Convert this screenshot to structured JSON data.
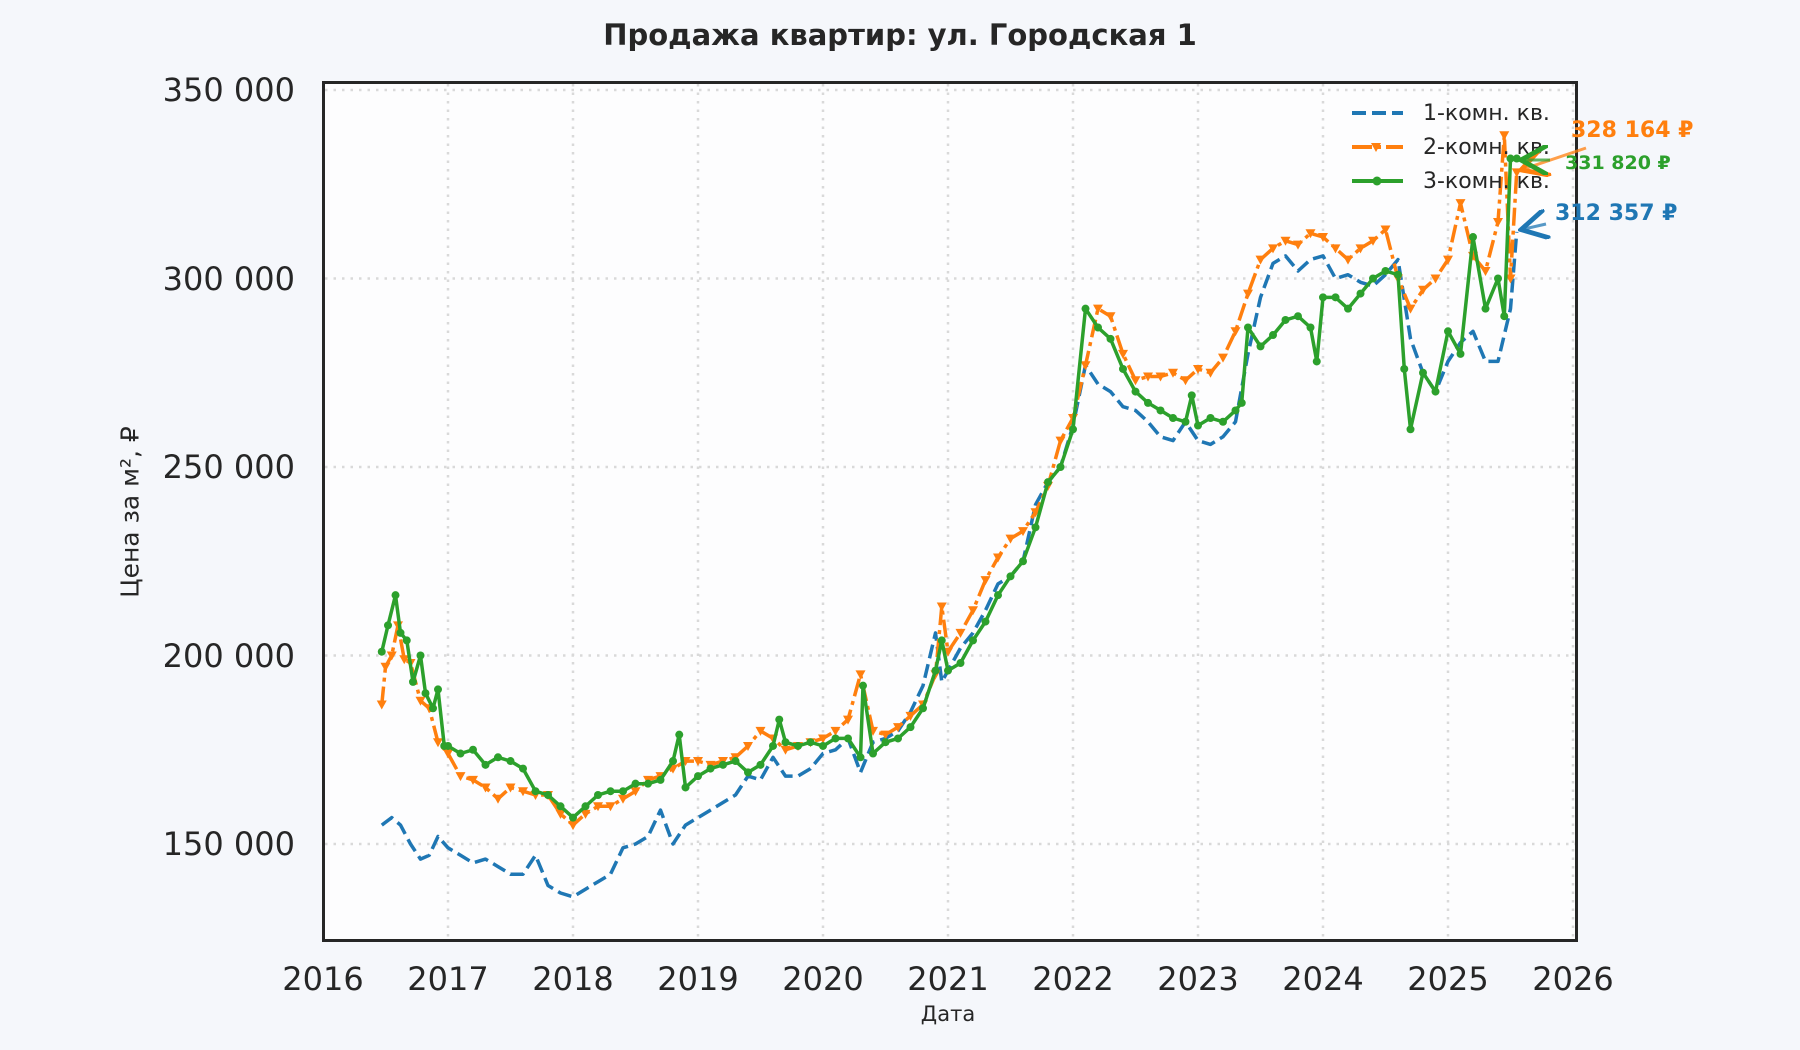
{
  "chart_data": {
    "type": "line",
    "title": "Продажа квартир: ул. Городская 1",
    "xlabel": "Дата",
    "ylabel": "Цена за м², ₽",
    "xlim": [
      2016,
      2026
    ],
    "ylim": [
      125000,
      352000
    ],
    "grid": true,
    "legend_position": "upper right",
    "x_ticks": [
      "2016",
      "2017",
      "2018",
      "2019",
      "2020",
      "2021",
      "2022",
      "2023",
      "2024",
      "2025",
      "2026"
    ],
    "y_ticks": [
      "150 000",
      "200 000",
      "250 000",
      "300 000",
      "350 000"
    ],
    "series": [
      {
        "name": "1-комн. кв.",
        "color": "#1f77b4",
        "style": "dashed",
        "x": [
          2016.47,
          2016.55,
          2016.62,
          2016.7,
          2016.78,
          2016.85,
          2016.92,
          2017.0,
          2017.1,
          2017.2,
          2017.3,
          2017.4,
          2017.5,
          2017.6,
          2017.7,
          2017.8,
          2017.9,
          2018.0,
          2018.1,
          2018.2,
          2018.3,
          2018.4,
          2018.5,
          2018.6,
          2018.7,
          2018.8,
          2018.9,
          2019.0,
          2019.1,
          2019.2,
          2019.3,
          2019.4,
          2019.5,
          2019.6,
          2019.7,
          2019.8,
          2019.9,
          2020.0,
          2020.1,
          2020.2,
          2020.3,
          2020.4,
          2020.5,
          2020.6,
          2020.7,
          2020.8,
          2020.9,
          2020.95,
          2021.0,
          2021.1,
          2021.2,
          2021.3,
          2021.4,
          2021.5,
          2021.6,
          2021.7,
          2021.8,
          2021.9,
          2022.0,
          2022.1,
          2022.2,
          2022.3,
          2022.4,
          2022.5,
          2022.6,
          2022.7,
          2022.8,
          2022.9,
          2023.0,
          2023.1,
          2023.2,
          2023.3,
          2023.4,
          2023.5,
          2023.6,
          2023.7,
          2023.8,
          2023.9,
          2024.0,
          2024.1,
          2024.2,
          2024.3,
          2024.4,
          2024.5,
          2024.6,
          2024.7,
          2024.8,
          2024.9,
          2025.0,
          2025.1,
          2025.2,
          2025.3,
          2025.4,
          2025.5,
          2025.55
        ],
        "values": [
          155000,
          157000,
          155000,
          150000,
          146000,
          147000,
          152000,
          149000,
          147000,
          145000,
          146000,
          144000,
          142000,
          142000,
          147000,
          139000,
          137000,
          136000,
          138000,
          140000,
          142000,
          149000,
          150000,
          152000,
          159000,
          150000,
          155000,
          157000,
          159000,
          161000,
          163000,
          168000,
          167000,
          173000,
          168000,
          168000,
          170000,
          174000,
          175000,
          178000,
          169000,
          177000,
          178000,
          180000,
          185000,
          192000,
          206000,
          193000,
          196000,
          202000,
          206000,
          212000,
          219000,
          221000,
          225000,
          240000,
          246000,
          250000,
          261000,
          277000,
          272000,
          270000,
          266000,
          265000,
          262000,
          258000,
          257000,
          262000,
          257000,
          256000,
          258000,
          262000,
          280000,
          295000,
          304000,
          306000,
          302000,
          305000,
          306000,
          300000,
          301000,
          299000,
          298000,
          301000,
          305000,
          284000,
          275000,
          270000,
          278000,
          283000,
          286000,
          278000,
          278000,
          292000,
          312357
        ]
      },
      {
        "name": "2-комн. кв.",
        "color": "#ff7f0e",
        "style": "dashdot",
        "marker": "triangle-down",
        "x": [
          2016.47,
          2016.5,
          2016.55,
          2016.6,
          2016.65,
          2016.7,
          2016.78,
          2016.85,
          2016.92,
          2017.0,
          2017.1,
          2017.2,
          2017.3,
          2017.4,
          2017.5,
          2017.6,
          2017.7,
          2017.8,
          2017.9,
          2018.0,
          2018.1,
          2018.2,
          2018.3,
          2018.4,
          2018.5,
          2018.6,
          2018.7,
          2018.8,
          2018.9,
          2019.0,
          2019.1,
          2019.2,
          2019.3,
          2019.4,
          2019.5,
          2019.6,
          2019.7,
          2019.8,
          2019.9,
          2020.0,
          2020.1,
          2020.2,
          2020.3,
          2020.4,
          2020.5,
          2020.6,
          2020.7,
          2020.8,
          2020.9,
          2020.95,
          2021.0,
          2021.1,
          2021.2,
          2021.3,
          2021.4,
          2021.5,
          2021.6,
          2021.7,
          2021.8,
          2021.9,
          2022.0,
          2022.1,
          2022.2,
          2022.3,
          2022.4,
          2022.5,
          2022.6,
          2022.7,
          2022.8,
          2022.9,
          2023.0,
          2023.1,
          2023.2,
          2023.3,
          2023.4,
          2023.5,
          2023.6,
          2023.7,
          2023.8,
          2023.9,
          2024.0,
          2024.1,
          2024.2,
          2024.3,
          2024.4,
          2024.5,
          2024.6,
          2024.7,
          2024.8,
          2024.9,
          2025.0,
          2025.1,
          2025.2,
          2025.3,
          2025.4,
          2025.45,
          2025.5,
          2025.55
        ],
        "values": [
          187000,
          197000,
          200000,
          208000,
          199000,
          198000,
          188000,
          186000,
          177000,
          174000,
          168000,
          167000,
          165000,
          162000,
          165000,
          164000,
          163000,
          163000,
          158000,
          155000,
          158000,
          160000,
          160000,
          162000,
          164000,
          167000,
          168000,
          170000,
          172000,
          172000,
          171000,
          172000,
          173000,
          176000,
          180000,
          178000,
          175000,
          176000,
          177000,
          178000,
          180000,
          183000,
          195000,
          180000,
          179000,
          181000,
          184000,
          187000,
          195000,
          213000,
          201000,
          206000,
          212000,
          220000,
          226000,
          231000,
          233000,
          238000,
          245000,
          257000,
          263000,
          277000,
          292000,
          290000,
          280000,
          273000,
          274000,
          274000,
          275000,
          273000,
          276000,
          275000,
          279000,
          286000,
          296000,
          305000,
          308000,
          310000,
          309000,
          312000,
          311000,
          308000,
          305000,
          308000,
          310000,
          313000,
          300000,
          292000,
          297000,
          300000,
          305000,
          320000,
          306000,
          302000,
          315000,
          338000,
          300000,
          328164
        ]
      },
      {
        "name": "3-комн. кв.",
        "color": "#2ca02c",
        "style": "solid",
        "marker": "circle",
        "x": [
          2016.47,
          2016.52,
          2016.58,
          2016.62,
          2016.67,
          2016.72,
          2016.78,
          2016.82,
          2016.88,
          2016.92,
          2016.97,
          2017.0,
          2017.1,
          2017.2,
          2017.3,
          2017.4,
          2017.5,
          2017.6,
          2017.7,
          2017.8,
          2017.9,
          2018.0,
          2018.1,
          2018.2,
          2018.3,
          2018.4,
          2018.5,
          2018.6,
          2018.7,
          2018.8,
          2018.85,
          2018.9,
          2019.0,
          2019.1,
          2019.2,
          2019.3,
          2019.4,
          2019.5,
          2019.6,
          2019.65,
          2019.7,
          2019.8,
          2019.9,
          2020.0,
          2020.1,
          2020.2,
          2020.3,
          2020.32,
          2020.4,
          2020.5,
          2020.6,
          2020.7,
          2020.8,
          2020.9,
          2020.95,
          2021.0,
          2021.1,
          2021.2,
          2021.3,
          2021.4,
          2021.5,
          2021.6,
          2021.7,
          2021.8,
          2021.9,
          2022.0,
          2022.1,
          2022.2,
          2022.3,
          2022.4,
          2022.5,
          2022.6,
          2022.7,
          2022.8,
          2022.9,
          2022.95,
          2023.0,
          2023.1,
          2023.2,
          2023.3,
          2023.35,
          2023.4,
          2023.5,
          2023.6,
          2023.7,
          2023.8,
          2023.9,
          2023.95,
          2024.0,
          2024.1,
          2024.2,
          2024.3,
          2024.4,
          2024.5,
          2024.6,
          2024.65,
          2024.7,
          2024.8,
          2024.9,
          2025.0,
          2025.1,
          2025.2,
          2025.3,
          2025.4,
          2025.45,
          2025.5,
          2025.55
        ],
        "values": [
          201000,
          208000,
          216000,
          206000,
          204000,
          193000,
          200000,
          190000,
          186000,
          191000,
          176000,
          176000,
          174000,
          175000,
          171000,
          173000,
          172000,
          170000,
          164000,
          163000,
          160000,
          157000,
          160000,
          163000,
          164000,
          164000,
          166000,
          166000,
          167000,
          172000,
          179000,
          165000,
          168000,
          170000,
          171000,
          172000,
          169000,
          171000,
          176000,
          183000,
          177000,
          176000,
          177000,
          176000,
          178000,
          178000,
          173000,
          192000,
          174000,
          177000,
          178000,
          181000,
          186000,
          196000,
          204000,
          196000,
          198000,
          204000,
          209000,
          216000,
          221000,
          225000,
          234000,
          246000,
          250000,
          260000,
          292000,
          287000,
          284000,
          276000,
          270000,
          267000,
          265000,
          263000,
          262000,
          269000,
          261000,
          263000,
          262000,
          265000,
          267000,
          287000,
          282000,
          285000,
          289000,
          290000,
          287000,
          278000,
          295000,
          295000,
          292000,
          296000,
          300000,
          302000,
          301000,
          276000,
          260000,
          275000,
          270000,
          286000,
          280000,
          311000,
          292000,
          300000,
          290000,
          331820,
          331820
        ]
      }
    ],
    "annotations": [
      {
        "text": "328 164 ₽",
        "series": "2-комн. кв.",
        "value": 328164,
        "color": "#ff7f0e"
      },
      {
        "text": "331 820 ₽",
        "series": "3-комн. кв.",
        "value": 331820,
        "color": "#2ca02c"
      },
      {
        "text": "312 357 ₽",
        "series": "1-комн. кв.",
        "value": 312357,
        "color": "#1f77b4"
      }
    ]
  }
}
